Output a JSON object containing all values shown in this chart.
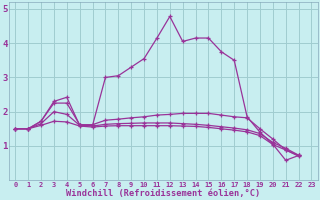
{
  "xlabel": "Windchill (Refroidissement éolien,°C)",
  "xlim": [
    -0.5,
    23.5
  ],
  "ylim": [
    0,
    5.2
  ],
  "yticks": [
    1,
    2,
    3,
    4,
    5
  ],
  "xticks": [
    0,
    1,
    2,
    3,
    4,
    5,
    6,
    7,
    8,
    9,
    10,
    11,
    12,
    13,
    14,
    15,
    16,
    17,
    18,
    19,
    20,
    21,
    22,
    23
  ],
  "bg_color": "#c8eef0",
  "grid_color": "#a0ccd0",
  "line_color": "#993399",
  "label_bg": "#9900aa",
  "label_fg": "#ffffff",
  "curves": [
    {
      "x": [
        0,
        1,
        2,
        3,
        4,
        5,
        6,
        7,
        8,
        9,
        10,
        11,
        12,
        13,
        14,
        15,
        16,
        17,
        18,
        19,
        20,
        21,
        22
      ],
      "y": [
        1.5,
        1.5,
        1.72,
        2.3,
        2.42,
        1.6,
        1.6,
        3.0,
        3.05,
        3.3,
        3.55,
        4.15,
        4.78,
        4.05,
        4.15,
        4.15,
        3.75,
        3.5,
        1.85,
        1.4,
        1.05,
        0.58,
        0.72
      ]
    },
    {
      "x": [
        0,
        1,
        2,
        3,
        4,
        5,
        6,
        7,
        8,
        9,
        10,
        11,
        12,
        13,
        14,
        15,
        16,
        17,
        18,
        19,
        20,
        21,
        22
      ],
      "y": [
        1.5,
        1.5,
        1.72,
        2.25,
        2.25,
        1.62,
        1.62,
        1.75,
        1.78,
        1.82,
        1.85,
        1.9,
        1.92,
        1.95,
        1.95,
        1.95,
        1.9,
        1.85,
        1.82,
        1.5,
        1.2,
        0.88,
        0.72
      ]
    },
    {
      "x": [
        0,
        1,
        2,
        3,
        4,
        5,
        6,
        7,
        8,
        9,
        10,
        11,
        12,
        13,
        14,
        15,
        16,
        17,
        18,
        19,
        20,
        21,
        22
      ],
      "y": [
        1.5,
        1.5,
        1.65,
        2.0,
        1.92,
        1.6,
        1.58,
        1.63,
        1.65,
        1.66,
        1.67,
        1.67,
        1.67,
        1.65,
        1.63,
        1.6,
        1.56,
        1.52,
        1.47,
        1.36,
        1.1,
        0.93,
        0.73
      ]
    },
    {
      "x": [
        0,
        1,
        2,
        3,
        4,
        5,
        6,
        7,
        8,
        9,
        10,
        11,
        12,
        13,
        14,
        15,
        16,
        17,
        18,
        19,
        20,
        21,
        22
      ],
      "y": [
        1.5,
        1.5,
        1.6,
        1.72,
        1.7,
        1.58,
        1.55,
        1.58,
        1.59,
        1.59,
        1.59,
        1.59,
        1.59,
        1.58,
        1.57,
        1.54,
        1.5,
        1.46,
        1.41,
        1.3,
        1.04,
        0.88,
        0.7
      ]
    }
  ]
}
